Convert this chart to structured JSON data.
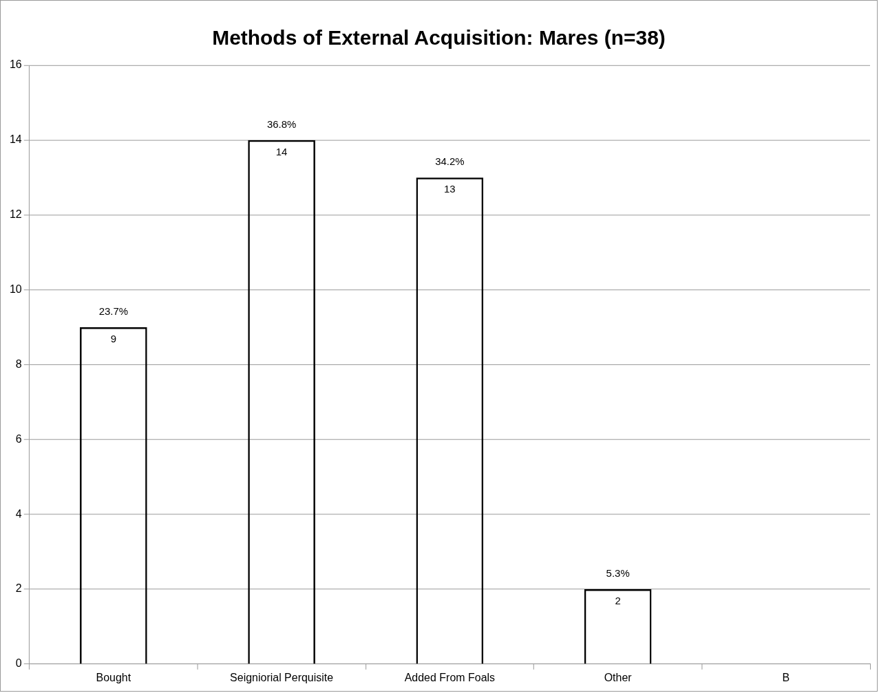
{
  "chart_data": {
    "type": "bar",
    "title": "Methods of External Acquisition: Mares (n=38)",
    "categories": [
      "Bought",
      "Seigniorial Perquisite",
      "Added From Foals",
      "Other",
      "B"
    ],
    "values": [
      9,
      14,
      13,
      2,
      null
    ],
    "color": "#000000",
    "annotations": [
      {
        "text": "23.7%",
        "x": "Bought",
        "y": 9
      },
      {
        "text": "36.8%",
        "x": "Seigniorial Perquisite",
        "y": 14
      },
      {
        "text": "34.2%",
        "x": "Added From Foals",
        "y": 13
      },
      {
        "text": "5.3%",
        "x": "Other",
        "y": 2
      }
    ],
    "data_labels": true,
    "ylim": [
      0,
      16
    ],
    "yticks": [
      0,
      2,
      4,
      6,
      8,
      10,
      12,
      14,
      16
    ],
    "grid": "y",
    "legend": false
  }
}
